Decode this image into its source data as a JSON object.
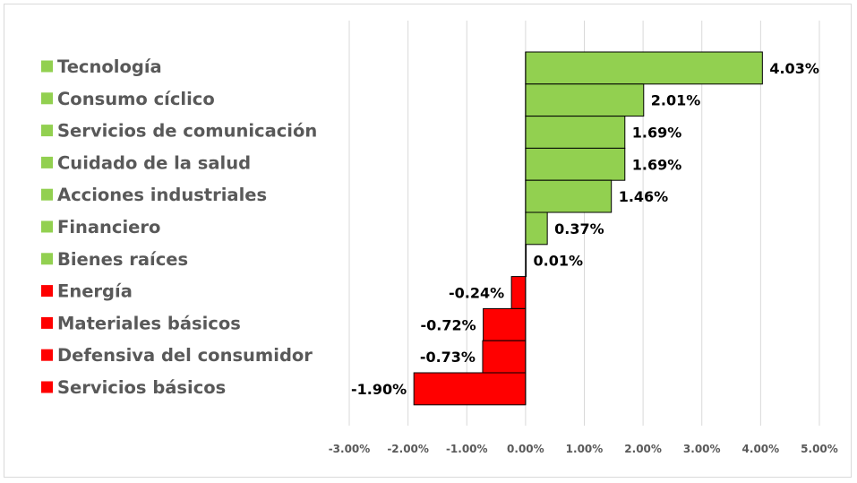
{
  "chart_data": {
    "type": "bar",
    "orientation": "horizontal",
    "title": "",
    "xlabel": "",
    "ylabel": "",
    "xlim": [
      -3.0,
      5.0
    ],
    "tick_step": 1.0,
    "grid": true,
    "legend_position": "left",
    "categories": [
      "Tecnología",
      "Consumo cíclico",
      "Servicios de comunicación",
      "Cuidado de la salud",
      "Acciones industriales",
      "Financiero",
      "Bienes raíces",
      "Energía",
      "Materiales básicos",
      "Defensiva del consumidor",
      "Servicios básicos"
    ],
    "values": [
      4.03,
      2.01,
      1.69,
      1.69,
      1.46,
      0.37,
      0.01,
      -0.24,
      -0.72,
      -0.73,
      -1.9
    ],
    "data_labels": [
      "4.03%",
      "2.01%",
      "1.69%",
      "1.69%",
      "1.46%",
      "0.37%",
      "0.01%",
      "-0.24%",
      "-0.72%",
      "-0.73%",
      "-1.90%"
    ],
    "tick_labels": [
      "-3.00%",
      "-2.00%",
      "-1.00%",
      "0.00%",
      "1.00%",
      "2.00%",
      "3.00%",
      "4.00%",
      "5.00%"
    ],
    "colors": {
      "positive": "#92d050",
      "negative": "#ff0000",
      "grid": "#d9d9d9",
      "bar_border": "#000000"
    }
  }
}
